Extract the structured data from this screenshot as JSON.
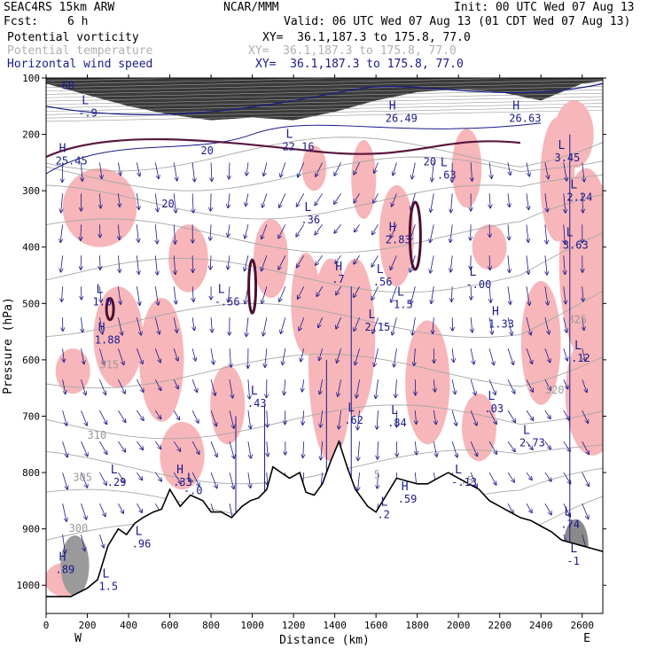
{
  "header": {
    "model": "SEAC4RS 15km ARW",
    "source": "NCAR/MMM",
    "init": "Init: 00 UTC Wed 07 Aug 13",
    "fcst_label": "Fcst:",
    "fcst_value": "6 h",
    "valid": "Valid: 06 UTC Wed 07 Aug 13 (01 CDT Wed 07 Aug 13)"
  },
  "fields": [
    {
      "name": "Potential vorticity",
      "xy": "XY=  36.1,187.3 to 175.8, 77.0",
      "color": "#000000"
    },
    {
      "name": "Potential temperature",
      "xy": "XY=  36.1,187.3 to 175.8, 77.0",
      "color": "#b0b0b0"
    },
    {
      "name": "Horizontal wind speed",
      "xy": "XY=  36.1,187.3 to 175.8, 77.0",
      "color": "#1a1a8c"
    }
  ],
  "chart_data": {
    "type": "heatmap",
    "xlabel": "Distance (km)",
    "ylabel": "Pressure (hPa)",
    "xlim": [
      0,
      2700
    ],
    "ylim": [
      1050,
      100
    ],
    "x_ticks": [
      0,
      200,
      400,
      600,
      800,
      1000,
      1200,
      1400,
      1600,
      1800,
      2000,
      2200,
      2400,
      2600
    ],
    "y_ticks": [
      100,
      200,
      300,
      400,
      500,
      600,
      700,
      800,
      900,
      1000
    ],
    "x_end_labels": {
      "left": "W",
      "right": "E"
    },
    "theta_labels": [
      {
        "x": 260,
        "p": 615,
        "text": "315"
      },
      {
        "x": 200,
        "p": 740,
        "text": "310"
      },
      {
        "x": 130,
        "p": 815,
        "text": "305"
      },
      {
        "x": 110,
        "p": 905,
        "text": "300"
      },
      {
        "x": 2530,
        "p": 535,
        "text": "325"
      },
      {
        "x": 2420,
        "p": 660,
        "text": "320"
      },
      {
        "x": 2010,
        "p": 820,
        "text": ".5"
      },
      {
        "x": 1590,
        "p": 810,
        "text": "5"
      }
    ],
    "highs": [
      {
        "x": 80,
        "p": 975,
        "text": ".89"
      },
      {
        "x": 80,
        "p": 250,
        "text": "25.45"
      },
      {
        "x": 1680,
        "p": 175,
        "text": "26.49"
      },
      {
        "x": 2280,
        "p": 175,
        "text": "26.63"
      },
      {
        "x": 1420,
        "p": 460,
        "text": ".7"
      },
      {
        "x": 1680,
        "p": 390,
        "text": "2.83"
      },
      {
        "x": 2180,
        "p": 540,
        "text": "1.33"
      },
      {
        "x": 270,
        "p": 568,
        "text": "1.88"
      },
      {
        "x": 650,
        "p": 820,
        "text": ".33"
      },
      {
        "x": 1740,
        "p": 850,
        "text": ".59"
      }
    ],
    "lows": [
      {
        "x": 190,
        "p": 165,
        "text": "-.9"
      },
      {
        "x": 1270,
        "p": 355,
        "text": ".36"
      },
      {
        "x": 850,
        "p": 500,
        "text": "-.56"
      },
      {
        "x": 2070,
        "p": 470,
        "text": "-.00"
      },
      {
        "x": 1620,
        "p": 465,
        "text": ".56"
      },
      {
        "x": 1720,
        "p": 505,
        "text": "1.5"
      },
      {
        "x": 1580,
        "p": 545,
        "text": "2.15"
      },
      {
        "x": 1010,
        "p": 680,
        "text": ".43"
      },
      {
        "x": 1480,
        "p": 710,
        "text": ".62"
      },
      {
        "x": 1690,
        "p": 715,
        "text": ".84"
      },
      {
        "x": 2160,
        "p": 690,
        "text": ".03"
      },
      {
        "x": 2330,
        "p": 750,
        "text": "2.73"
      },
      {
        "x": 260,
        "p": 500,
        "text": "1.6"
      },
      {
        "x": 2000,
        "p": 820,
        "text": "-.13"
      },
      {
        "x": 1640,
        "p": 878,
        "text": ".2"
      },
      {
        "x": 2500,
        "p": 245,
        "text": "3.45"
      },
      {
        "x": 2560,
        "p": 315,
        "text": "2.24"
      },
      {
        "x": 2540,
        "p": 400,
        "text": "3.63"
      },
      {
        "x": 2580,
        "p": 600,
        "text": ".12"
      },
      {
        "x": 2530,
        "p": 895,
        "text": ".74"
      },
      {
        "x": 2560,
        "p": 960,
        "text": "-1"
      },
      {
        "x": 450,
        "p": 930,
        "text": ".96"
      },
      {
        "x": 290,
        "p": 1005,
        "text": "1.5"
      },
      {
        "x": 330,
        "p": 820,
        "text": ".29"
      },
      {
        "x": 700,
        "p": 835,
        "text": "-.0"
      },
      {
        "x": 1180,
        "p": 225,
        "text": "22.16"
      },
      {
        "x": 1930,
        "p": 275,
        "text": ".63"
      }
    ],
    "wind_speed_labels": [
      {
        "x": 75,
        "p": 120,
        "text": "68"
      },
      {
        "x": 750,
        "p": 235,
        "text": "20"
      },
      {
        "x": 560,
        "p": 330,
        "text": "20"
      },
      {
        "x": 1830,
        "p": 255,
        "text": "20"
      }
    ],
    "terrain": [
      [
        0,
        1020
      ],
      [
        120,
        1020
      ],
      [
        200,
        1005
      ],
      [
        250,
        990
      ],
      [
        300,
        930
      ],
      [
        350,
        900
      ],
      [
        390,
        910
      ],
      [
        430,
        890
      ],
      [
        470,
        880
      ],
      [
        520,
        870
      ],
      [
        560,
        865
      ],
      [
        600,
        830
      ],
      [
        650,
        860
      ],
      [
        700,
        840
      ],
      [
        760,
        850
      ],
      [
        800,
        870
      ],
      [
        850,
        870
      ],
      [
        900,
        880
      ],
      [
        950,
        860
      ],
      [
        990,
        850
      ],
      [
        1030,
        845
      ],
      [
        1070,
        830
      ],
      [
        1100,
        790
      ],
      [
        1140,
        800
      ],
      [
        1180,
        810
      ],
      [
        1230,
        800
      ],
      [
        1260,
        835
      ],
      [
        1300,
        840
      ],
      [
        1340,
        820
      ],
      [
        1380,
        780
      ],
      [
        1420,
        745
      ],
      [
        1460,
        790
      ],
      [
        1500,
        830
      ],
      [
        1560,
        860
      ],
      [
        1600,
        870
      ],
      [
        1650,
        840
      ],
      [
        1700,
        810
      ],
      [
        1750,
        815
      ],
      [
        1800,
        820
      ],
      [
        1850,
        820
      ],
      [
        1900,
        810
      ],
      [
        1950,
        800
      ],
      [
        2000,
        810
      ],
      [
        2050,
        820
      ],
      [
        2100,
        830
      ],
      [
        2150,
        850
      ],
      [
        2200,
        860
      ],
      [
        2250,
        870
      ],
      [
        2300,
        880
      ],
      [
        2350,
        885
      ],
      [
        2400,
        895
      ],
      [
        2450,
        905
      ],
      [
        2500,
        920
      ],
      [
        2550,
        925
      ],
      [
        2600,
        930
      ],
      [
        2650,
        935
      ],
      [
        2700,
        940
      ]
    ]
  }
}
